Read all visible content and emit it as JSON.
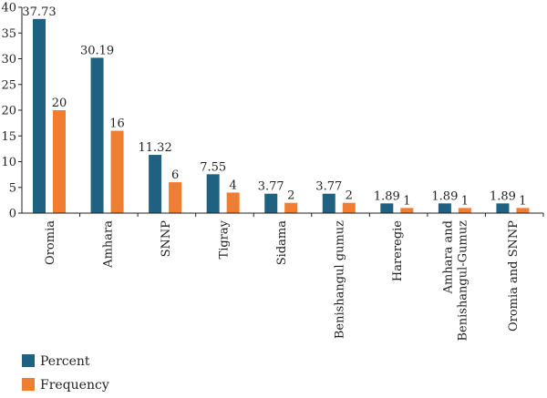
{
  "chart_data": {
    "type": "bar",
    "title": "",
    "xlabel": "",
    "ylabel": "",
    "ylim": [
      0,
      40
    ],
    "yticks": [
      0,
      5,
      10,
      15,
      20,
      25,
      30,
      35,
      40
    ],
    "grid": false,
    "legend_position": "bottom-left",
    "categories": [
      "Oromia",
      "Amhara",
      "SNNP",
      "Tigray",
      "Sidama",
      "Benishangul gumuz",
      "Hareregie",
      "Amhara and Benishangul-Gumuz",
      "Oromia and SNNP"
    ],
    "series": [
      {
        "name": "Percent",
        "color": "#1e6181",
        "values": [
          37.73,
          30.19,
          11.32,
          7.55,
          3.77,
          3.77,
          1.89,
          1.89,
          1.89
        ],
        "labels": [
          "37.73",
          "30.19",
          "11.32",
          "7.55",
          "3.77",
          "3.77",
          "1.89",
          "1.89",
          "1.89"
        ]
      },
      {
        "name": "Frequency",
        "color": "#ef7d32",
        "values": [
          20,
          16,
          6,
          4,
          2,
          2,
          1,
          1,
          1
        ],
        "labels": [
          "20",
          "16",
          "6",
          "4",
          "2",
          "2",
          "1",
          "1",
          "1"
        ]
      }
    ]
  }
}
